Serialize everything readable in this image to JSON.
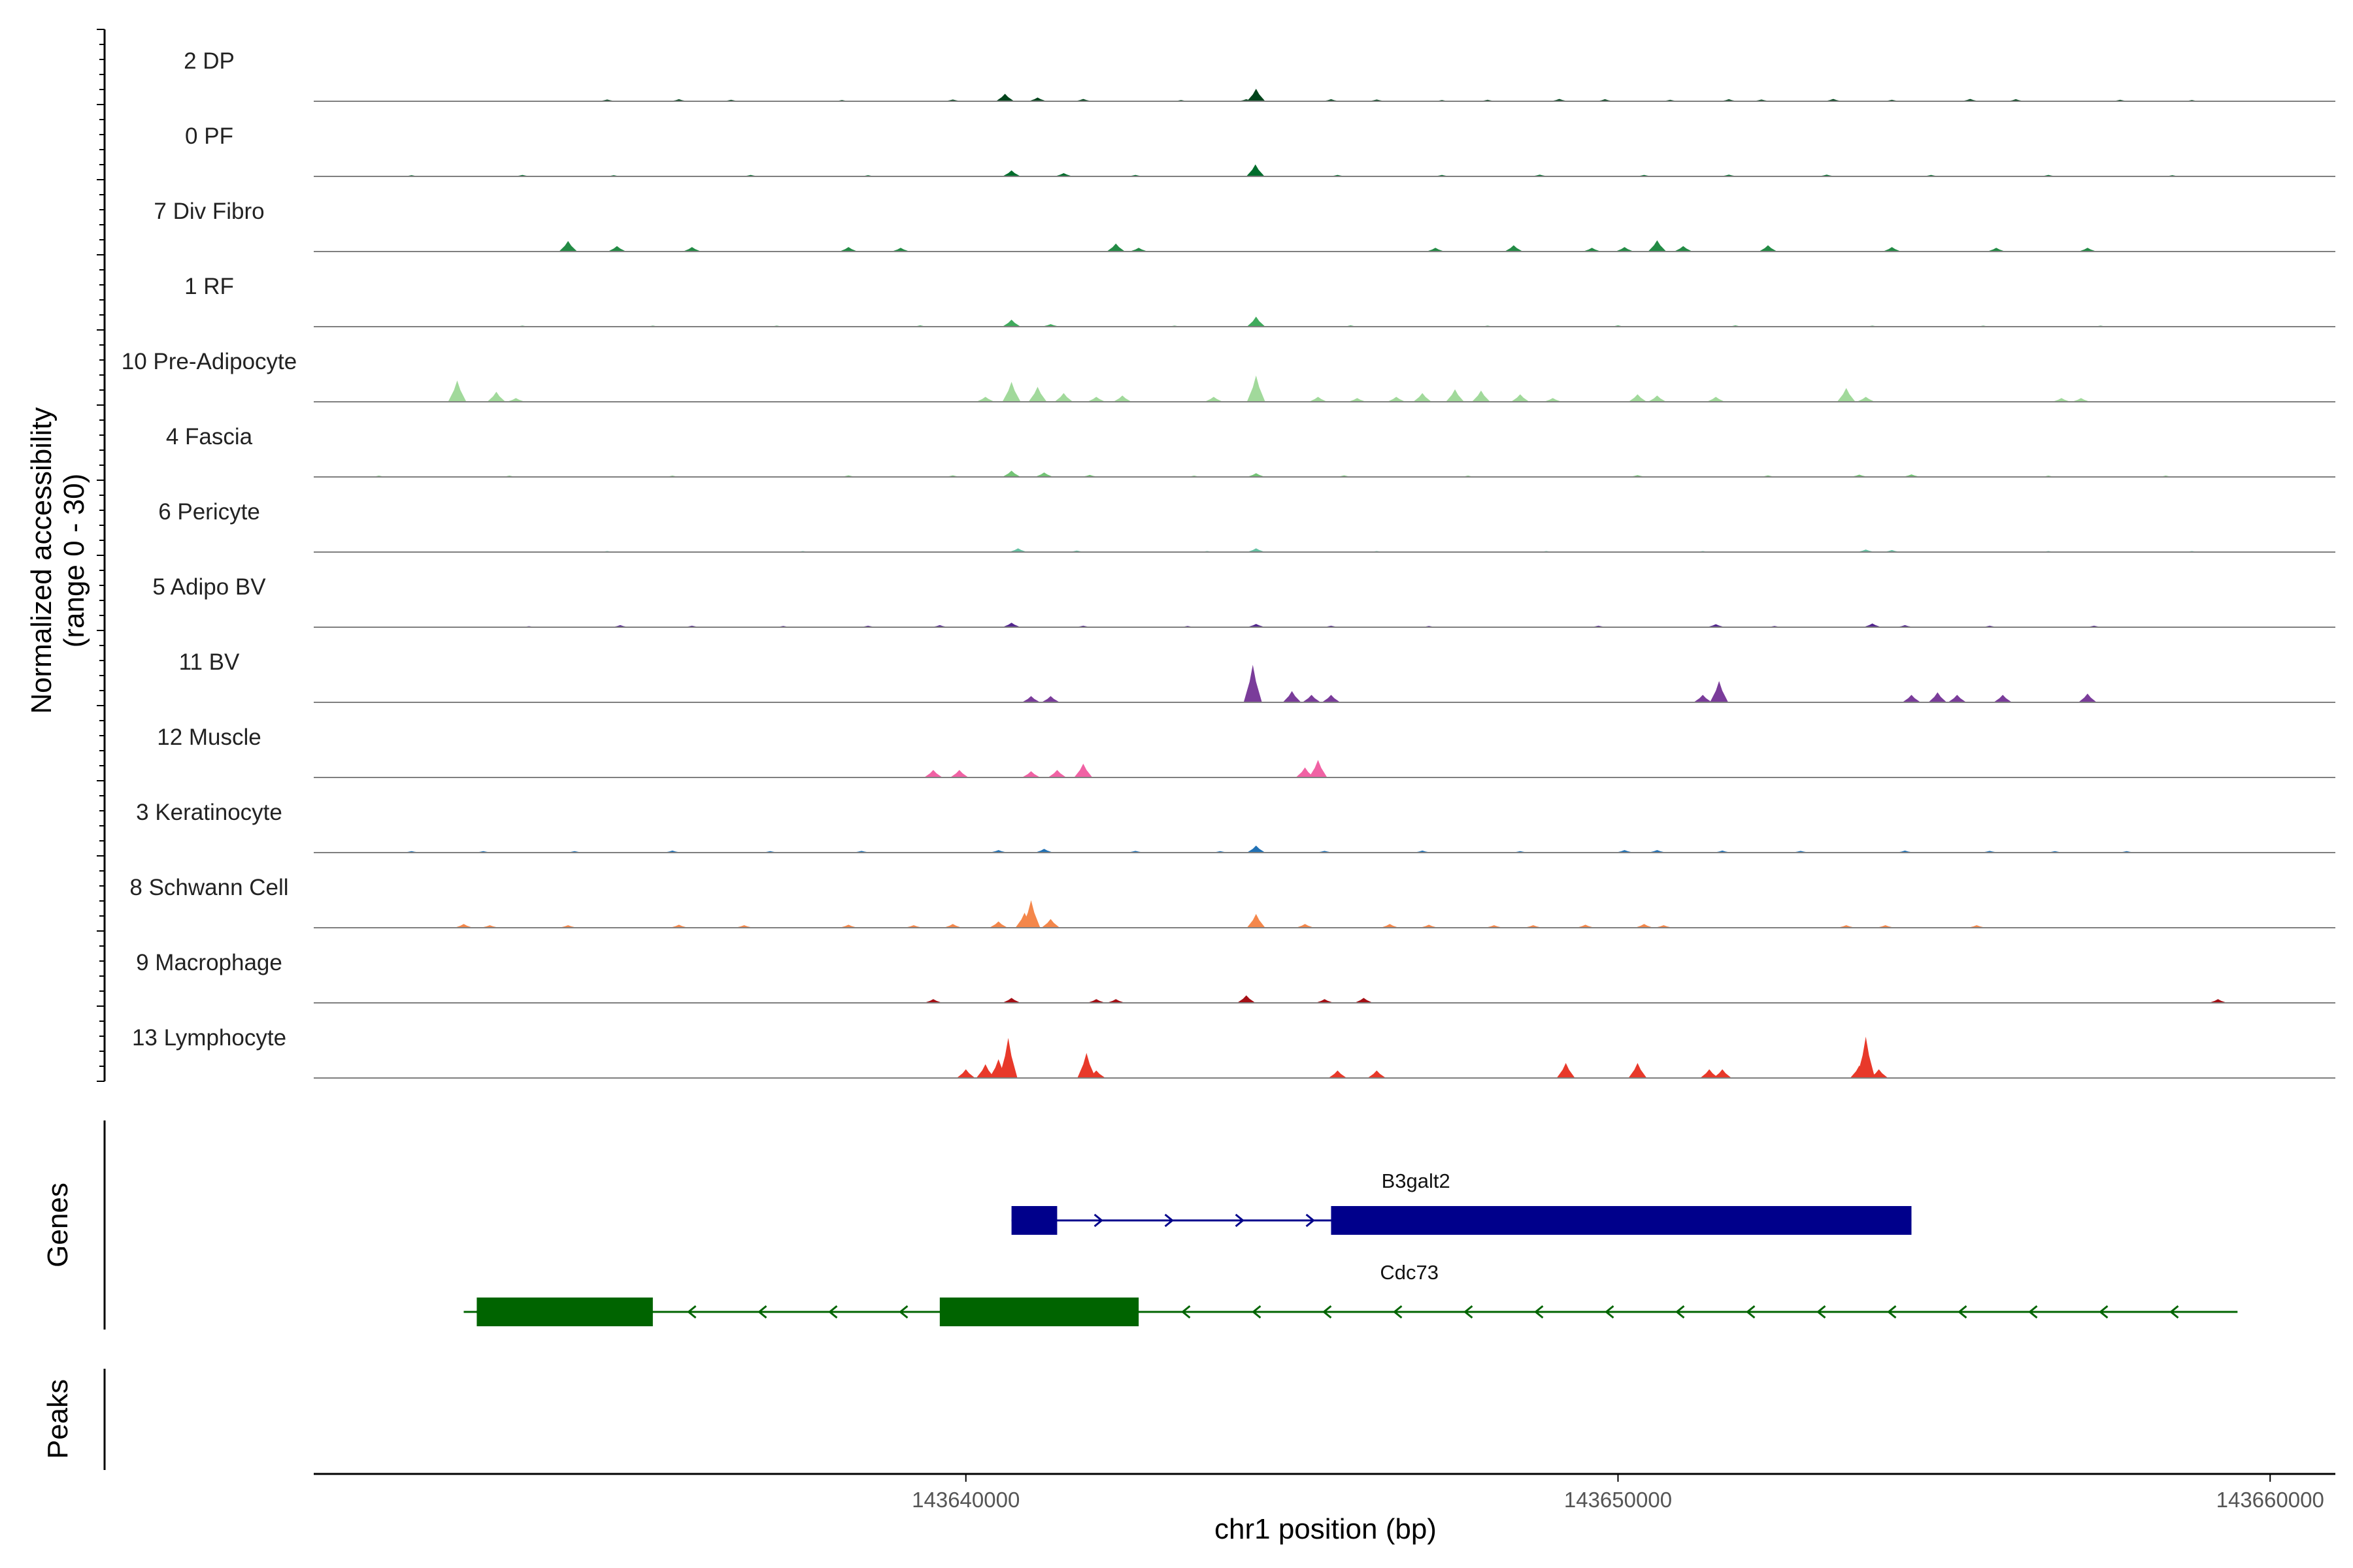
{
  "chart_data": {
    "type": "area",
    "title": "",
    "xlabel": "chr1 position (bp)",
    "ylabel_line1": "Normalized accessibility",
    "ylabel_line2": "(range 0 - 30)",
    "yrange": [
      0,
      30
    ],
    "xrange": [
      143630000,
      143661000
    ],
    "xticks": [
      143640000,
      143650000,
      143660000
    ],
    "xtick_labels": [
      "143640000",
      "143650000",
      "143660000"
    ],
    "panel_titles": {
      "genes": "Genes",
      "peaks": "Peaks"
    },
    "tracks": [
      {
        "label": "2 DP",
        "color": "#00441b",
        "peaks": [
          [
            143634500,
            0.7
          ],
          [
            143635600,
            0.8
          ],
          [
            143636400,
            0.6
          ],
          [
            143638100,
            0.5
          ],
          [
            143639800,
            0.7
          ],
          [
            143640600,
            3.0
          ],
          [
            143641100,
            1.5
          ],
          [
            143641800,
            0.9
          ],
          [
            143643300,
            0.5
          ],
          [
            143644300,
            0.8
          ],
          [
            143644450,
            5.0
          ],
          [
            143645600,
            0.8
          ],
          [
            143646300,
            0.7
          ],
          [
            143647300,
            0.5
          ],
          [
            143648000,
            0.6
          ],
          [
            143649100,
            0.9
          ],
          [
            143649800,
            0.8
          ],
          [
            143650800,
            0.6
          ],
          [
            143651700,
            0.8
          ],
          [
            143652200,
            0.7
          ],
          [
            143653300,
            0.9
          ],
          [
            143654200,
            0.6
          ],
          [
            143655400,
            0.9
          ],
          [
            143656100,
            0.8
          ],
          [
            143657700,
            0.6
          ],
          [
            143658800,
            0.5
          ]
        ]
      },
      {
        "label": "0 PF",
        "color": "#006d2c",
        "peaks": [
          [
            143631500,
            0.5
          ],
          [
            143633200,
            0.6
          ],
          [
            143634600,
            0.5
          ],
          [
            143636700,
            0.6
          ],
          [
            143638500,
            0.5
          ],
          [
            143640700,
            2.4
          ],
          [
            143641500,
            1.3
          ],
          [
            143642600,
            0.6
          ],
          [
            143644440,
            4.8
          ],
          [
            143645700,
            0.6
          ],
          [
            143647300,
            0.6
          ],
          [
            143648800,
            0.7
          ],
          [
            143650400,
            0.6
          ],
          [
            143651700,
            0.7
          ],
          [
            143653200,
            0.7
          ],
          [
            143654800,
            0.6
          ],
          [
            143656600,
            0.6
          ],
          [
            143658500,
            0.5
          ]
        ]
      },
      {
        "label": "7 Div Fibro",
        "color": "#238b45",
        "peaks": [
          [
            143633900,
            4.2
          ],
          [
            143634650,
            2.2
          ],
          [
            143635800,
            1.8
          ],
          [
            143638200,
            1.8
          ],
          [
            143639000,
            1.5
          ],
          [
            143642300,
            3.2
          ],
          [
            143642650,
            1.5
          ],
          [
            143647200,
            1.5
          ],
          [
            143648400,
            2.5
          ],
          [
            143649600,
            1.5
          ],
          [
            143650100,
            1.8
          ],
          [
            143650600,
            4.5
          ],
          [
            143651000,
            2.2
          ],
          [
            143652300,
            2.5
          ],
          [
            143654200,
            1.8
          ],
          [
            143655800,
            1.5
          ],
          [
            143657200,
            1.5
          ]
        ]
      },
      {
        "label": "1 RF",
        "color": "#41ab5d",
        "peaks": [
          [
            143633200,
            0.4
          ],
          [
            143635200,
            0.4
          ],
          [
            143637100,
            0.4
          ],
          [
            143639300,
            0.5
          ],
          [
            143640700,
            2.8
          ],
          [
            143641300,
            1.0
          ],
          [
            143643200,
            0.4
          ],
          [
            143644450,
            4.0
          ],
          [
            143645900,
            0.5
          ],
          [
            143648000,
            0.4
          ],
          [
            143650000,
            0.5
          ],
          [
            143651800,
            0.5
          ],
          [
            143653900,
            0.4
          ],
          [
            143655600,
            0.4
          ],
          [
            143657400,
            0.4
          ]
        ]
      },
      {
        "label": "10 Pre-Adipocyte",
        "color": "#a1d99b",
        "peaks": [
          [
            143632200,
            8.5
          ],
          [
            143632800,
            4.0
          ],
          [
            143633100,
            1.5
          ],
          [
            143640300,
            2.0
          ],
          [
            143640700,
            8.0
          ],
          [
            143641100,
            6.0
          ],
          [
            143641500,
            3.5
          ],
          [
            143642000,
            2.0
          ],
          [
            143642400,
            2.5
          ],
          [
            143643800,
            2.0
          ],
          [
            143644450,
            10.5
          ],
          [
            143645400,
            2.0
          ],
          [
            143646000,
            1.5
          ],
          [
            143646600,
            2.0
          ],
          [
            143647000,
            3.5
          ],
          [
            143647500,
            5.0
          ],
          [
            143647900,
            4.5
          ],
          [
            143648500,
            3.0
          ],
          [
            143649000,
            1.5
          ],
          [
            143650300,
            3.0
          ],
          [
            143650600,
            2.5
          ],
          [
            143651500,
            2.0
          ],
          [
            143653500,
            5.5
          ],
          [
            143653800,
            2.0
          ],
          [
            143656800,
            1.5
          ],
          [
            143657100,
            1.5
          ]
        ]
      },
      {
        "label": "4 Fascia",
        "color": "#74c476",
        "peaks": [
          [
            143631000,
            0.5
          ],
          [
            143633000,
            0.5
          ],
          [
            143635500,
            0.5
          ],
          [
            143638200,
            0.6
          ],
          [
            143639800,
            0.6
          ],
          [
            143640700,
            2.5
          ],
          [
            143641200,
            1.8
          ],
          [
            143641900,
            0.8
          ],
          [
            143643500,
            0.5
          ],
          [
            143644450,
            1.5
          ],
          [
            143645800,
            0.6
          ],
          [
            143647700,
            0.5
          ],
          [
            143650300,
            0.7
          ],
          [
            143652300,
            0.6
          ],
          [
            143653700,
            0.9
          ],
          [
            143654500,
            1.0
          ],
          [
            143656600,
            0.5
          ],
          [
            143658400,
            0.5
          ]
        ]
      },
      {
        "label": "6 Pericyte",
        "color": "#66c2a4",
        "peaks": [
          [
            143634500,
            0.4
          ],
          [
            143637500,
            0.4
          ],
          [
            143640800,
            1.5
          ],
          [
            143641700,
            0.6
          ],
          [
            143643700,
            0.4
          ],
          [
            143644450,
            1.5
          ],
          [
            143646300,
            0.4
          ],
          [
            143648900,
            0.4
          ],
          [
            143651300,
            0.4
          ],
          [
            143653800,
            1.0
          ],
          [
            143654200,
            0.8
          ],
          [
            143656600,
            0.4
          ],
          [
            143658800,
            0.4
          ]
        ]
      },
      {
        "label": "5 Adipo BV",
        "color": "#54278f",
        "peaks": [
          [
            143633300,
            0.4
          ],
          [
            143634700,
            0.8
          ],
          [
            143635800,
            0.6
          ],
          [
            143637200,
            0.5
          ],
          [
            143638500,
            0.6
          ],
          [
            143639600,
            0.8
          ],
          [
            143640700,
            1.8
          ],
          [
            143641800,
            0.6
          ],
          [
            143643400,
            0.5
          ],
          [
            143644450,
            1.3
          ],
          [
            143645600,
            0.6
          ],
          [
            143647100,
            0.5
          ],
          [
            143649700,
            0.6
          ],
          [
            143651500,
            1.2
          ],
          [
            143652400,
            0.5
          ],
          [
            143653900,
            1.5
          ],
          [
            143654400,
            0.8
          ],
          [
            143655700,
            0.6
          ],
          [
            143657300,
            0.6
          ]
        ]
      },
      {
        "label": "11 BV",
        "color": "#7a3c9a",
        "peaks": [
          [
            143641000,
            2.5
          ],
          [
            143641300,
            2.5
          ],
          [
            143644400,
            15.0
          ],
          [
            143645000,
            4.5
          ],
          [
            143645300,
            3.0
          ],
          [
            143645600,
            3.0
          ],
          [
            143651550,
            8.5
          ],
          [
            143651300,
            3.0
          ],
          [
            143654500,
            3.0
          ],
          [
            143654900,
            4.0
          ],
          [
            143655200,
            3.0
          ],
          [
            143655900,
            3.0
          ],
          [
            143657200,
            3.5
          ]
        ]
      },
      {
        "label": "12 Muscle",
        "color": "#f062a4",
        "peaks": [
          [
            143639500,
            3.0
          ],
          [
            143639900,
            3.0
          ],
          [
            143641000,
            2.5
          ],
          [
            143641400,
            3.0
          ],
          [
            143641800,
            5.5
          ],
          [
            143645200,
            4.0
          ],
          [
            143645400,
            7.0
          ]
        ]
      },
      {
        "label": "3 Keratinocyte",
        "color": "#2171b5",
        "peaks": [
          [
            143631500,
            0.6
          ],
          [
            143632600,
            0.6
          ],
          [
            143634000,
            0.6
          ],
          [
            143635500,
            0.8
          ],
          [
            143637000,
            0.6
          ],
          [
            143638400,
            0.7
          ],
          [
            143640500,
            1.0
          ],
          [
            143641200,
            1.5
          ],
          [
            143642600,
            0.7
          ],
          [
            143643900,
            0.6
          ],
          [
            143644450,
            2.8
          ],
          [
            143645500,
            0.7
          ],
          [
            143647000,
            0.8
          ],
          [
            143648500,
            0.6
          ],
          [
            143650100,
            1.0
          ],
          [
            143650600,
            1.0
          ],
          [
            143651600,
            0.8
          ],
          [
            143652800,
            0.7
          ],
          [
            143654400,
            0.8
          ],
          [
            143655700,
            0.7
          ],
          [
            143656700,
            0.6
          ],
          [
            143657800,
            0.6
          ]
        ]
      },
      {
        "label": "8 Schwann Cell",
        "color": "#f4874b",
        "peaks": [
          [
            143632300,
            1.5
          ],
          [
            143632700,
            1.0
          ],
          [
            143633900,
            1.0
          ],
          [
            143635600,
            1.2
          ],
          [
            143636600,
            1.0
          ],
          [
            143638200,
            1.2
          ],
          [
            143639200,
            1.0
          ],
          [
            143639800,
            1.5
          ],
          [
            143640500,
            2.5
          ],
          [
            143640900,
            6.0
          ],
          [
            143641000,
            11.0
          ],
          [
            143641300,
            3.5
          ],
          [
            143644450,
            5.5
          ],
          [
            143645200,
            1.5
          ],
          [
            143646500,
            1.5
          ],
          [
            143647100,
            1.2
          ],
          [
            143648100,
            1.0
          ],
          [
            143648700,
            1.0
          ],
          [
            143649500,
            1.2
          ],
          [
            143650400,
            1.5
          ],
          [
            143650700,
            1.0
          ],
          [
            143653500,
            1.0
          ],
          [
            143654100,
            1.0
          ],
          [
            143655500,
            1.0
          ]
        ]
      },
      {
        "label": "9 Macrophage",
        "color": "#a50f15",
        "peaks": [
          [
            143639500,
            1.5
          ],
          [
            143640700,
            2.0
          ],
          [
            143642000,
            1.5
          ],
          [
            143642300,
            1.5
          ],
          [
            143644300,
            3.0
          ],
          [
            143645500,
            1.5
          ],
          [
            143646100,
            2.0
          ],
          [
            143659200,
            1.5
          ]
        ]
      },
      {
        "label": "13 Lymphocyte",
        "color": "#e8392a",
        "peaks": [
          [
            143640000,
            3.5
          ],
          [
            143640300,
            5.5
          ],
          [
            143640500,
            7.5
          ],
          [
            143640650,
            16.0
          ],
          [
            143641850,
            10.0
          ],
          [
            143642000,
            3.0
          ],
          [
            143645700,
            3.0
          ],
          [
            143646300,
            3.0
          ],
          [
            143649200,
            6.0
          ],
          [
            143650300,
            6.0
          ],
          [
            143651400,
            3.5
          ],
          [
            143651600,
            3.5
          ],
          [
            143653800,
            16.5
          ],
          [
            143653700,
            5.0
          ],
          [
            143654000,
            3.5
          ]
        ]
      }
    ],
    "genes": [
      {
        "name": "B3galt2",
        "color": "#00008b",
        "strand": "+",
        "start": 143640700,
        "end": 143654500,
        "exons": [
          [
            143640700,
            143641400
          ],
          [
            143645600,
            143654500
          ]
        ]
      },
      {
        "name": "Cdc73",
        "color": "#006400",
        "strand": "-",
        "start": 143632300,
        "end": 143659500,
        "exons": [
          [
            143632500,
            143635200
          ],
          [
            143639600,
            143642650
          ]
        ]
      }
    ]
  }
}
